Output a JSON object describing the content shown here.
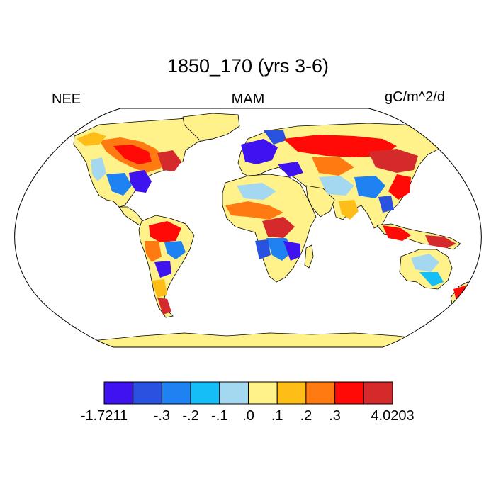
{
  "title": "1850_170 (yrs 3-6)",
  "left_label": "NEE",
  "center_label": "MAM",
  "right_label": "gC/m^2/d",
  "colorbar": {
    "colors": [
      "#3f12f0",
      "#2a52e0",
      "#1e82f2",
      "#16bef8",
      "#a4d8f0",
      "#fff28a",
      "#ffbd17",
      "#ff7a10",
      "#ff0a07",
      "#d42a2c"
    ],
    "tick_labels": [
      "-1.7211",
      "-.3",
      "-.2",
      "-.1",
      ".0",
      ".1",
      ".2",
      ".3",
      "4.0203"
    ]
  },
  "map": {
    "projection": "Robinson",
    "ocean_color": "#ffffff",
    "coastline_color": "#000000"
  }
}
